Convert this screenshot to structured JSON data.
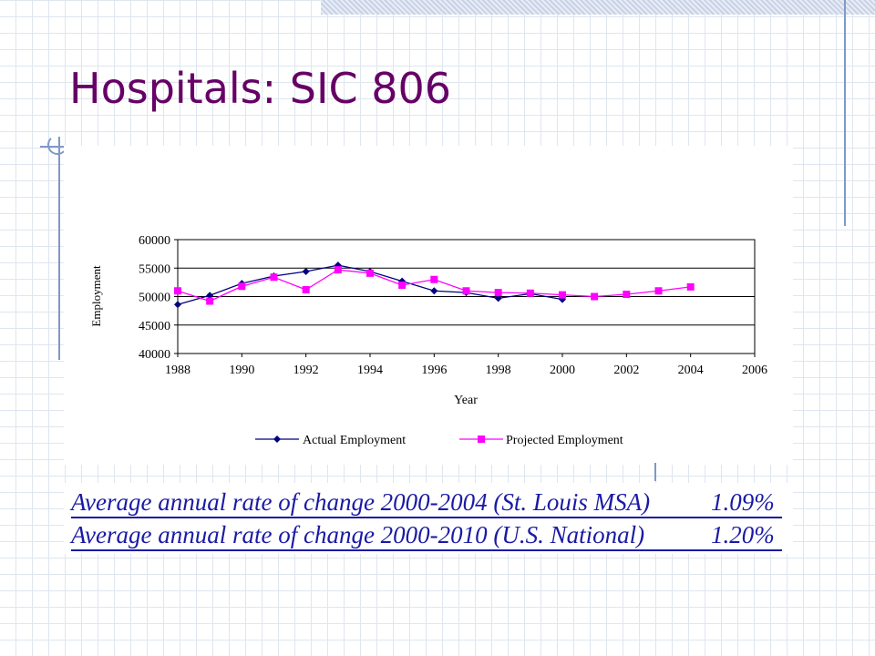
{
  "slide": {
    "title": "Hospitals: SIC 806"
  },
  "stats": [
    {
      "label": "Average annual rate of change 2000-2004 (St. Louis MSA)",
      "value": "1.09%"
    },
    {
      "label": "Average annual rate of change 2000-2010 (U.S. National)",
      "value": "1.20%"
    }
  ],
  "colors": {
    "title": "#660066",
    "actual": "#000080",
    "projected": "#ff00ff",
    "stats_text": "#1a1aa6"
  },
  "chart_data": {
    "type": "line",
    "xlabel": "Year",
    "ylabel": "Employment",
    "xlim": [
      1988,
      2006
    ],
    "ylim": [
      40000,
      60000
    ],
    "xticks": [
      1988,
      1990,
      1992,
      1994,
      1996,
      1998,
      2000,
      2002,
      2004,
      2006
    ],
    "yticks": [
      40000,
      45000,
      50000,
      55000,
      60000
    ],
    "grid": "horizontal",
    "legend": "bottom",
    "series": [
      {
        "name": "Actual Employment",
        "color": "#000080",
        "marker": "diamond",
        "x": [
          1988,
          1989,
          1990,
          1991,
          1992,
          1993,
          1994,
          1995,
          1996,
          1997,
          1998,
          1999,
          2000
        ],
        "y": [
          48600,
          50200,
          52300,
          53600,
          54400,
          55500,
          54400,
          52700,
          51000,
          50700,
          49700,
          50500,
          49500
        ]
      },
      {
        "name": "Projected Employment",
        "color": "#ff00ff",
        "marker": "square",
        "x": [
          1988,
          1989,
          1990,
          1991,
          1992,
          1993,
          1994,
          1995,
          1996,
          1997,
          1998,
          1999,
          2000,
          2001,
          2002,
          2003,
          2004
        ],
        "y": [
          51000,
          49200,
          51800,
          53400,
          51200,
          54700,
          54100,
          52000,
          53000,
          51000,
          50700,
          50600,
          50300,
          50000,
          50400,
          51000,
          51700
        ]
      }
    ]
  }
}
